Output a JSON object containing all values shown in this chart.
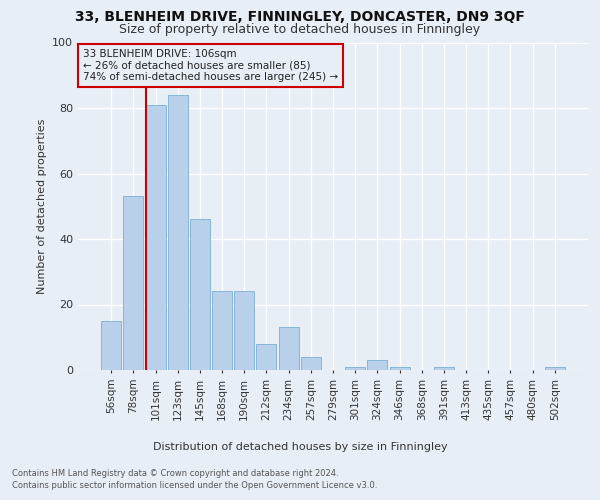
{
  "title": "33, BLENHEIM DRIVE, FINNINGLEY, DONCASTER, DN9 3QF",
  "subtitle": "Size of property relative to detached houses in Finningley",
  "xlabel": "Distribution of detached houses by size in Finningley",
  "ylabel": "Number of detached properties",
  "footnote1": "Contains HM Land Registry data © Crown copyright and database right 2024.",
  "footnote2": "Contains public sector information licensed under the Open Government Licence v3.0.",
  "annotation_line1": "33 BLENHEIM DRIVE: 106sqm",
  "annotation_line2": "← 26% of detached houses are smaller (85)",
  "annotation_line3": "74% of semi-detached houses are larger (245) →",
  "bar_labels": [
    "56sqm",
    "78sqm",
    "101sqm",
    "123sqm",
    "145sqm",
    "168sqm",
    "190sqm",
    "212sqm",
    "234sqm",
    "257sqm",
    "279sqm",
    "301sqm",
    "324sqm",
    "346sqm",
    "368sqm",
    "391sqm",
    "413sqm",
    "435sqm",
    "457sqm",
    "480sqm",
    "502sqm"
  ],
  "bar_values": [
    15,
    53,
    81,
    84,
    46,
    24,
    24,
    8,
    13,
    4,
    0,
    1,
    3,
    1,
    0,
    1,
    0,
    0,
    0,
    0,
    1
  ],
  "bar_color": "#b8d0ea",
  "bar_edge_color": "#7aafd4",
  "background_color": "#e8eef6",
  "vline_color": "#cc0000",
  "ylim": [
    0,
    100
  ],
  "annotation_box_color": "#cc0000",
  "title_fontsize": 10,
  "subtitle_fontsize": 9,
  "ylabel_fontsize": 8,
  "xlabel_fontsize": 8,
  "tick_fontsize": 7.5,
  "footnote_fontsize": 6,
  "annotation_fontsize": 7.5
}
